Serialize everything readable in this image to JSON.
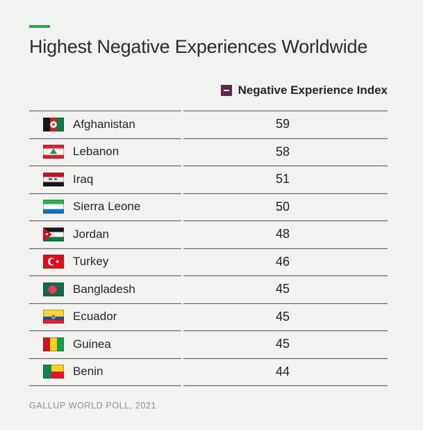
{
  "title": "Highest Negative Experiences Worldwide",
  "accent_dash_color": "#24a259",
  "legend": {
    "label": "Negative Experience Index",
    "marker_color": "#5e2750",
    "marker_symbol": "minus"
  },
  "source": "GALLUP WORLD POLL, 2021",
  "chart_data": {
    "type": "table",
    "title": "Highest Negative Experiences Worldwide",
    "legend_entries": [
      "Negative Experience Index"
    ],
    "source": "GALLUP WORLD POLL, 2021",
    "categories": [
      "Afghanistan",
      "Lebanon",
      "Iraq",
      "Sierra Leone",
      "Jordan",
      "Turkey",
      "Bangladesh",
      "Ecuador",
      "Guinea",
      "Benin"
    ],
    "values": [
      59,
      58,
      51,
      50,
      48,
      46,
      45,
      45,
      45,
      44
    ],
    "rows": [
      {
        "country": "Afghanistan",
        "flag": "afghanistan",
        "value": 59
      },
      {
        "country": "Lebanon",
        "flag": "lebanon",
        "value": 58
      },
      {
        "country": "Iraq",
        "flag": "iraq",
        "value": 51
      },
      {
        "country": "Sierra Leone",
        "flag": "sierra-leone",
        "value": 50
      },
      {
        "country": "Jordan",
        "flag": "jordan",
        "value": 48
      },
      {
        "country": "Turkey",
        "flag": "turkey",
        "value": 46
      },
      {
        "country": "Bangladesh",
        "flag": "bangladesh",
        "value": 45
      },
      {
        "country": "Ecuador",
        "flag": "ecuador",
        "value": 45
      },
      {
        "country": "Guinea",
        "flag": "guinea",
        "value": 45
      },
      {
        "country": "Benin",
        "flag": "benin",
        "value": 44
      }
    ]
  }
}
